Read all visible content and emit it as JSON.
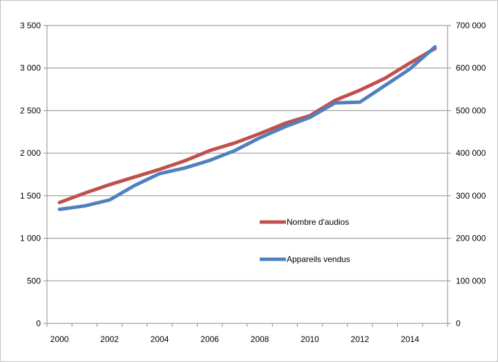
{
  "chart_data": {
    "type": "line",
    "title": "",
    "xlabel": "",
    "ylabel_left": "",
    "ylabel_right": "",
    "x": [
      2000,
      2001,
      2002,
      2003,
      2004,
      2005,
      2006,
      2007,
      2008,
      2009,
      2010,
      2011,
      2012,
      2013,
      2014,
      2015
    ],
    "x_tick_labels": [
      "2000",
      "2002",
      "2004",
      "2006",
      "2008",
      "2010",
      "2012",
      "2014"
    ],
    "y_left_range": [
      0,
      3500
    ],
    "y_left_tick_labels": [
      "0",
      "500",
      "1 000",
      "1 500",
      "2 000",
      "2 500",
      "3 000",
      "3 500"
    ],
    "y_right_range": [
      0,
      700000
    ],
    "y_right_tick_labels": [
      "0",
      "100 000",
      "200 000",
      "300 000",
      "400 000",
      "500 000",
      "600 000",
      "700 000"
    ],
    "grid": "horizontal",
    "legend_position": "inside-right",
    "series": [
      {
        "name": "Nombre d'audios",
        "axis": "left",
        "color": "#c0504d",
        "values": [
          1420,
          1530,
          1630,
          1720,
          1810,
          1910,
          2030,
          2120,
          2230,
          2350,
          2440,
          2620,
          2740,
          2880,
          3060,
          3230
        ]
      },
      {
        "name": "Appareils vendus",
        "axis": "right",
        "color": "#4f81bd",
        "values": [
          268000,
          276000,
          290000,
          324000,
          352000,
          365000,
          383000,
          406000,
          436000,
          462000,
          484000,
          518000,
          520000,
          559000,
          598000,
          650000
        ]
      }
    ]
  }
}
